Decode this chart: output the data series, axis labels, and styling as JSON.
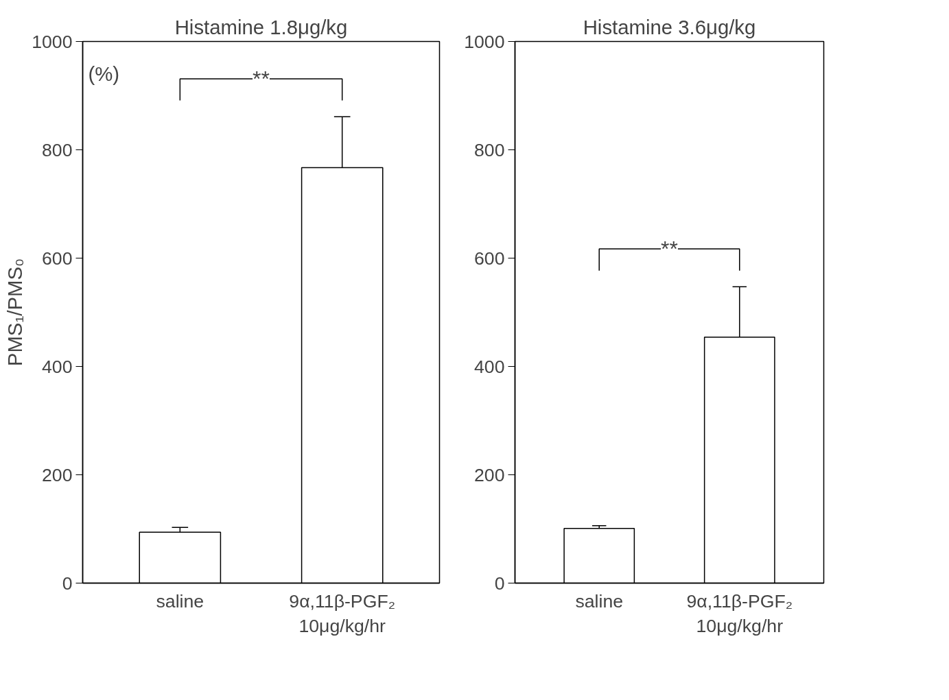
{
  "chart_data": [
    {
      "type": "bar",
      "title": "Histamine 1.8μg/kg",
      "ylabel": "PMS₁/PMS₀",
      "categories": [
        "saline",
        "9α,11β-PGF₂\n10μg/kg/hr"
      ],
      "values": [
        94,
        767
      ],
      "errors": [
        [
          94,
          103
        ],
        [
          767,
          861
        ]
      ],
      "color": "#ffffff",
      "ylim": [
        0,
        1000
      ],
      "yticks": [
        0,
        200,
        400,
        600,
        800,
        1000
      ],
      "annotations": [
        "(%)",
        "**"
      ],
      "grid": false
    },
    {
      "type": "bar",
      "title": "Histamine 3.6μg/kg",
      "categories": [
        "saline",
        "9α,11β-PGF₂\n10μg/kg/hr"
      ],
      "values": [
        101,
        454
      ],
      "errors": [
        [
          101,
          106
        ],
        [
          454,
          547
        ]
      ],
      "color": "#ffffff",
      "ylim": [
        0,
        1000
      ],
      "yticks": [
        0,
        200,
        400,
        600,
        800,
        1000
      ],
      "annotations": [
        "**"
      ],
      "grid": false
    }
  ]
}
